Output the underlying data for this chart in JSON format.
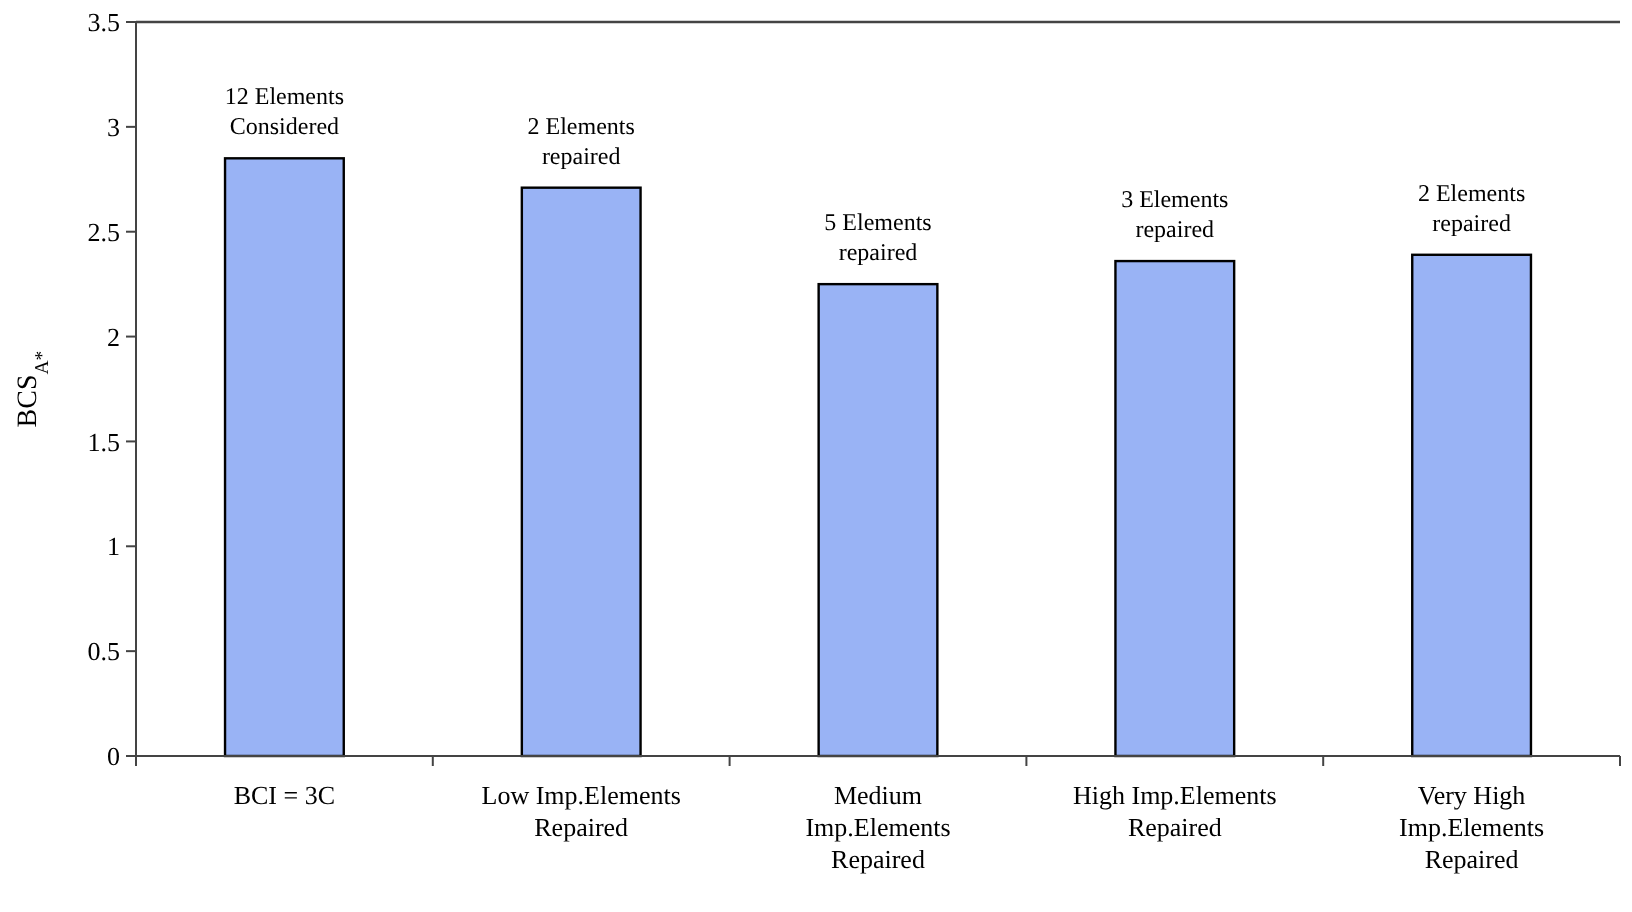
{
  "chart_data": {
    "type": "bar",
    "ylabel": "BCS$_{A*}$",
    "categories": [
      "BCI = 3C",
      "Low Imp.Elements\nRepaired",
      "Medium\nImp.Elements\nRepaired",
      "High Imp.Elements\nRepaired",
      "Very High\nImp.Elements\nRepaired"
    ],
    "values": [
      2.85,
      2.71,
      2.25,
      2.36,
      2.39
    ],
    "color": "#99b3f5",
    "ylim": [
      0,
      3.5
    ],
    "yticks": [
      0,
      0.5,
      1,
      1.5,
      2,
      2.5,
      3,
      3.5
    ],
    "grid": false,
    "annotations": [
      {
        "text": "12 Elements\nConsidered",
        "x": "BCI = 3C",
        "y": 2.85
      },
      {
        "text": "2 Elements\nrepaired",
        "x": "Low Imp.Elements\nRepaired",
        "y": 2.71
      },
      {
        "text": "5 Elements\nrepaired",
        "x": "Medium\nImp.Elements\nRepaired",
        "y": 2.25
      },
      {
        "text": "3 Elements\nrepaired",
        "x": "High Imp.Elements\nRepaired",
        "y": 2.36
      },
      {
        "text": "2 Elements\nrepaired",
        "x": "Very High\nImp.Elements\nRepaired",
        "y": 2.39
      }
    ]
  }
}
